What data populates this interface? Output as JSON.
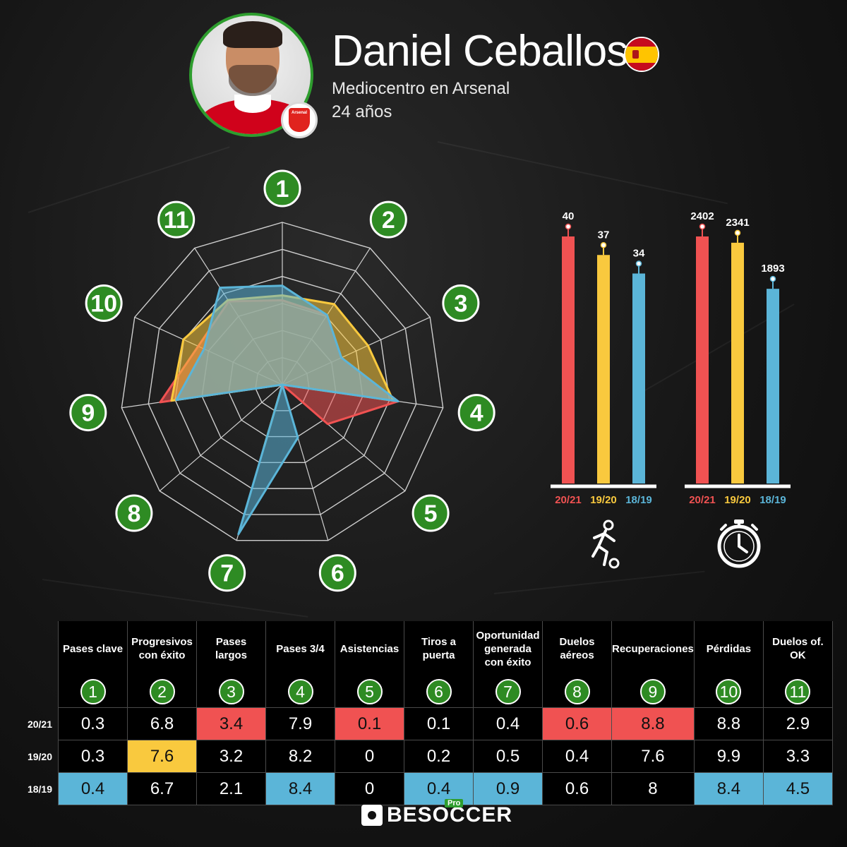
{
  "player": {
    "name": "Daniel Ceballos",
    "position": "Mediocentro en Arsenal",
    "age": "24 años",
    "club_badge_text": "Arsenal"
  },
  "colors": {
    "s2021": "#f05252",
    "s1920": "#f9c93e",
    "s1819": "#5bb5d8",
    "badge_green": "#2e8b23",
    "background": "#141414"
  },
  "chart_data": [
    {
      "type": "radar",
      "axes": [
        "1",
        "2",
        "3",
        "4",
        "5",
        "6",
        "7",
        "8",
        "9",
        "10",
        "11"
      ],
      "series": [
        {
          "season": "20/21",
          "values": [
            0.52,
            0.51,
            0.4,
            0.72,
            0.37,
            0.0,
            0.0,
            0.0,
            0.76,
            0.57,
            0.61
          ]
        },
        {
          "season": "19/20",
          "values": [
            0.55,
            0.59,
            0.58,
            0.69,
            0.0,
            0.0,
            0.4,
            0.0,
            0.69,
            0.67,
            0.62
          ]
        },
        {
          "season": "18/19",
          "values": [
            0.61,
            0.51,
            0.4,
            0.72,
            0.0,
            0.34,
            0.96,
            0.0,
            0.66,
            0.53,
            0.71
          ]
        }
      ]
    },
    {
      "type": "bar",
      "icon": "player-icon",
      "categories": [
        "20/21",
        "19/20",
        "18/19"
      ],
      "values": [
        40,
        37,
        34
      ],
      "ylim": [
        0,
        40
      ]
    },
    {
      "type": "bar",
      "icon": "stopwatch-icon",
      "categories": [
        "20/21",
        "19/20",
        "18/19"
      ],
      "values": [
        2402,
        2341,
        1893
      ],
      "ylim": [
        0,
        2402
      ]
    },
    {
      "type": "table",
      "columns": [
        {
          "num": "1",
          "label": [
            "Pases clave"
          ]
        },
        {
          "num": "2",
          "label": [
            "Progresivos",
            "con éxito"
          ]
        },
        {
          "num": "3",
          "label": [
            "Pases",
            "largos"
          ]
        },
        {
          "num": "4",
          "label": [
            "Pases 3/4"
          ]
        },
        {
          "num": "5",
          "label": [
            "Asistencias"
          ]
        },
        {
          "num": "6",
          "label": [
            "Tiros a",
            "puerta"
          ]
        },
        {
          "num": "7",
          "label": [
            "Oportunidad",
            "generada",
            "con éxito"
          ]
        },
        {
          "num": "8",
          "label": [
            "Duelos",
            "aéreos"
          ]
        },
        {
          "num": "9",
          "label": [
            "Recuperaciones"
          ]
        },
        {
          "num": "10",
          "label": [
            "Pérdidas"
          ]
        },
        {
          "num": "11",
          "label": [
            "Duelos of.",
            "OK"
          ]
        }
      ],
      "rows": [
        {
          "season": "20/21",
          "values": [
            "0.3",
            "6.8",
            "3.4",
            "7.9",
            "0.1",
            "0.1",
            "0.4",
            "0.6",
            "8.8",
            "8.8",
            "2.9"
          ],
          "highlight": [
            false,
            false,
            true,
            false,
            true,
            false,
            false,
            true,
            true,
            false,
            false
          ]
        },
        {
          "season": "19/20",
          "values": [
            "0.3",
            "7.6",
            "3.2",
            "8.2",
            "0",
            "0.2",
            "0.5",
            "0.4",
            "7.6",
            "9.9",
            "3.3"
          ],
          "highlight": [
            false,
            true,
            false,
            false,
            false,
            false,
            false,
            false,
            false,
            false,
            false
          ]
        },
        {
          "season": "18/19",
          "values": [
            "0.4",
            "6.7",
            "2.1",
            "8.4",
            "0",
            "0.4",
            "0.9",
            "0.6",
            "8",
            "8.4",
            "4.5"
          ],
          "highlight": [
            true,
            false,
            false,
            true,
            false,
            true,
            true,
            false,
            false,
            true,
            true
          ]
        }
      ]
    }
  ],
  "brand": {
    "name": "BESOCCER",
    "tag": "Pro"
  }
}
